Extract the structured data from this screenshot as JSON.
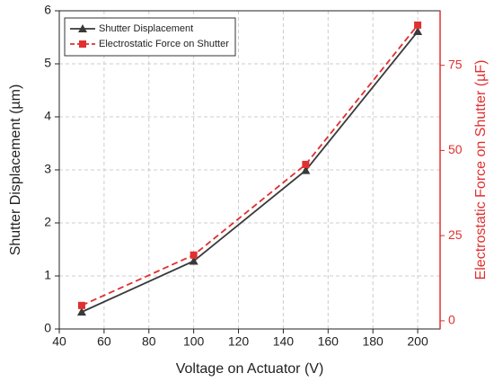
{
  "chart_data": {
    "type": "line",
    "xlabel": "Voltage on Actuator (V)",
    "ylabel": "Shutter Displacement (µm)",
    "y2label": "Electrostatic Force on Shutter (µF)",
    "x": [
      50,
      100,
      150,
      200
    ],
    "series": [
      {
        "name": "Shutter Displacement",
        "color": "#3a3a3a",
        "marker": "triangle",
        "dashed": false,
        "values": [
          0.32,
          1.28,
          2.99,
          5.61
        ]
      },
      {
        "name": "Electrostatic Force on Shutter",
        "color": "#e03030",
        "marker": "square",
        "dashed": true,
        "axis": "y2",
        "values": [
          4.5,
          19.3,
          45.9,
          86.8
        ]
      }
    ],
    "xlim": [
      40,
      210
    ],
    "xticks": [
      40,
      60,
      80,
      100,
      120,
      140,
      160,
      180,
      200
    ],
    "ylim": [
      0,
      6
    ],
    "yticks": [
      0,
      1,
      2,
      3,
      4,
      5,
      6
    ],
    "y2lim": [
      -2.4,
      91
    ],
    "y2ticks": [
      0,
      25,
      50,
      75
    ],
    "y2color": "#e03030",
    "grid": true,
    "legend": "upper left"
  }
}
